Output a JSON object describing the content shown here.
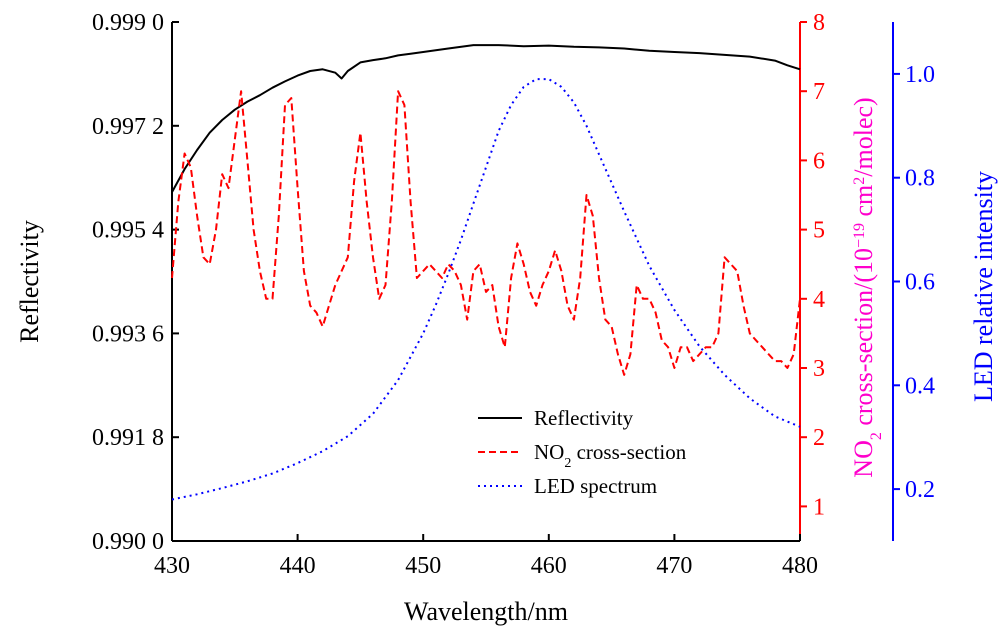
{
  "chart_data": {
    "type": "line",
    "x_axis": {
      "label": "Wavelength/nm",
      "range": [
        430,
        480
      ],
      "ticks": [
        430,
        440,
        450,
        460,
        470,
        480
      ]
    },
    "y_axes": {
      "reflectivity": {
        "label": "Reflectivity",
        "range": [
          0.99,
          0.999
        ],
        "ticks": [
          "0.990 0",
          "0.991 8",
          "0.993 6",
          "0.995 4",
          "0.997 2",
          "0.999 0"
        ],
        "color": "#000000"
      },
      "no2": {
        "label_prefix": "NO",
        "label_sub": "2",
        "label_mid": " cross-section/(10",
        "label_sup1": "−19",
        "label_mid2": " cm",
        "label_sup2": "2",
        "label_suffix": "/molec)",
        "range": [
          0.5,
          8
        ],
        "ticks": [
          "1",
          "2",
          "3",
          "4",
          "5",
          "6",
          "7",
          "8"
        ],
        "color": "#ff0000",
        "title_color": "#ff00cc"
      },
      "led": {
        "label": "LED relative intensity",
        "range": [
          0.1,
          1.1
        ],
        "ticks": [
          "0.2",
          "0.4",
          "0.6",
          "0.8",
          "1.0"
        ],
        "color": "#0000ff"
      }
    },
    "legend": {
      "position": "lower-center",
      "entries": [
        {
          "prefix": "Reflectivity",
          "sub": "",
          "suffix": "",
          "color": "#000000",
          "style": "solid"
        },
        {
          "prefix": "NO",
          "sub": "2",
          "suffix": " cross-section",
          "color": "#ff0000",
          "style": "dashed"
        },
        {
          "prefix": "LED spectrum",
          "sub": "",
          "suffix": "",
          "color": "#0000ff",
          "style": "dotted"
        }
      ]
    },
    "series": [
      {
        "name": "Reflectivity",
        "axis": "reflectivity",
        "color": "#000000",
        "style": "solid",
        "x": [
          430,
          431,
          432,
          433,
          434,
          435,
          436,
          437,
          438,
          439,
          440,
          441,
          442,
          443,
          443.5,
          444,
          445,
          446,
          447,
          448,
          449,
          450,
          452,
          454,
          456,
          458,
          460,
          462,
          464,
          466,
          468,
          470,
          472,
          474,
          476,
          478,
          479,
          480
        ],
        "y": [
          0.99605,
          0.99645,
          0.99678,
          0.99708,
          0.9973,
          0.99748,
          0.99762,
          0.99773,
          0.99786,
          0.99797,
          0.99807,
          0.99815,
          0.99818,
          0.99812,
          0.99802,
          0.99815,
          0.9983,
          0.99834,
          0.99837,
          0.99842,
          0.99845,
          0.99848,
          0.99854,
          0.9986,
          0.9986,
          0.99858,
          0.99859,
          0.99857,
          0.99856,
          0.99854,
          0.9985,
          0.99848,
          0.99846,
          0.99843,
          0.9984,
          0.99833,
          0.99825,
          0.99818
        ]
      },
      {
        "name": "NO₂ cross-section",
        "axis": "no2",
        "color": "#ff0000",
        "style": "dashed",
        "x": [
          430,
          430.5,
          431,
          431.5,
          432,
          432.5,
          433,
          433.5,
          434,
          434.5,
          435,
          435.5,
          436,
          436.5,
          437,
          437.5,
          438,
          438.5,
          439,
          439.5,
          440,
          440.5,
          441,
          441.5,
          442,
          442.5,
          443,
          443.5,
          444,
          444.5,
          445,
          445.5,
          446,
          446.5,
          447,
          447.5,
          448,
          448.5,
          449,
          449.5,
          450,
          450.5,
          451,
          451.5,
          452,
          452.5,
          453,
          453.5,
          454,
          454.5,
          455,
          455.5,
          456,
          456.5,
          457,
          457.5,
          458,
          458.5,
          459,
          459.5,
          460,
          460.5,
          461,
          461.5,
          462,
          462.5,
          463,
          463.5,
          464,
          464.5,
          465,
          465.5,
          466,
          466.5,
          467,
          467.5,
          468,
          468.5,
          469,
          469.5,
          470,
          470.5,
          471,
          471.5,
          472,
          472.5,
          473,
          473.5,
          474,
          474.5,
          475,
          475.5,
          476,
          476.5,
          477,
          477.5,
          478,
          478.5,
          479,
          479.5,
          480
        ],
        "y": [
          4.3,
          5.4,
          6.1,
          5.9,
          5.2,
          4.6,
          4.5,
          5.0,
          5.8,
          5.6,
          6.3,
          7.0,
          6.0,
          5.0,
          4.4,
          4.0,
          4.0,
          5.2,
          6.8,
          6.9,
          5.6,
          4.4,
          3.9,
          3.8,
          3.6,
          3.9,
          4.2,
          4.4,
          4.6,
          5.7,
          6.4,
          5.4,
          4.6,
          4.0,
          4.2,
          5.4,
          7.0,
          6.8,
          5.4,
          4.3,
          4.4,
          4.5,
          4.4,
          4.3,
          4.5,
          4.4,
          4.2,
          3.7,
          4.4,
          4.5,
          4.1,
          4.2,
          3.6,
          3.3,
          4.3,
          4.8,
          4.5,
          4.1,
          3.9,
          4.2,
          4.4,
          4.7,
          4.4,
          3.9,
          3.7,
          4.3,
          5.5,
          5.2,
          4.3,
          3.7,
          3.6,
          3.2,
          2.9,
          3.2,
          4.2,
          4.0,
          4.0,
          3.8,
          3.4,
          3.3,
          3.0,
          3.3,
          3.3,
          3.1,
          3.2,
          3.3,
          3.3,
          3.5,
          4.6,
          4.5,
          4.4,
          3.9,
          3.5,
          3.4,
          3.3,
          3.2,
          3.1,
          3.1,
          3.0,
          3.2,
          4.0
        ]
      },
      {
        "name": "LED spectrum",
        "axis": "led",
        "color": "#0000ff",
        "style": "dotted",
        "x": [
          430,
          432,
          434,
          436,
          438,
          440,
          442,
          444,
          446,
          448,
          450,
          451,
          452,
          453,
          454,
          455,
          456,
          457,
          458,
          459,
          460,
          461,
          462,
          463,
          464,
          466,
          468,
          470,
          472,
          474,
          476,
          478,
          480
        ],
        "y": [
          0.18,
          0.19,
          0.202,
          0.215,
          0.23,
          0.25,
          0.273,
          0.302,
          0.345,
          0.41,
          0.5,
          0.555,
          0.615,
          0.68,
          0.75,
          0.82,
          0.89,
          0.94,
          0.975,
          0.99,
          0.99,
          0.975,
          0.945,
          0.9,
          0.845,
          0.735,
          0.63,
          0.545,
          0.475,
          0.42,
          0.375,
          0.34,
          0.32
        ]
      }
    ]
  }
}
